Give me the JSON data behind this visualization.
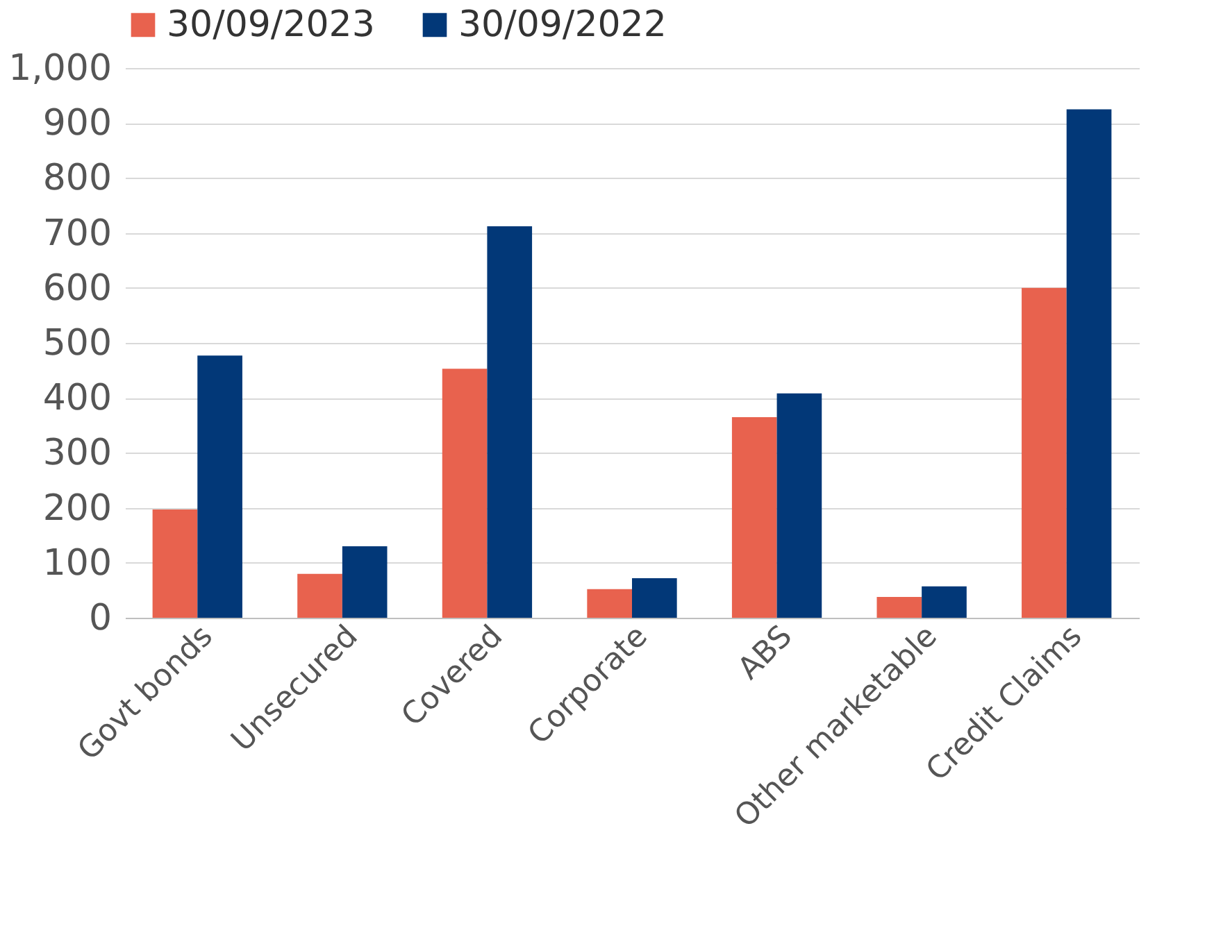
{
  "chart_data": {
    "type": "bar",
    "categories": [
      "Govt bonds",
      "Unsecured",
      "Covered",
      "Corporate",
      "ABS",
      "Other marketable",
      "Credit Claims"
    ],
    "series": [
      {
        "name": "30/09/2023",
        "color": "#e8624e",
        "values": [
          197,
          80,
          453,
          52,
          365,
          38,
          600
        ]
      },
      {
        "name": "30/09/2022",
        "color": "#023878",
        "values": [
          477,
          130,
          712,
          72,
          408,
          57,
          925
        ]
      }
    ],
    "ylim": [
      0,
      1000
    ],
    "yticks": [
      0,
      100,
      200,
      300,
      400,
      500,
      600,
      700,
      800,
      900,
      {
        "value": 1000,
        "label": "1,000"
      }
    ],
    "grid": "y",
    "legend": "top"
  }
}
